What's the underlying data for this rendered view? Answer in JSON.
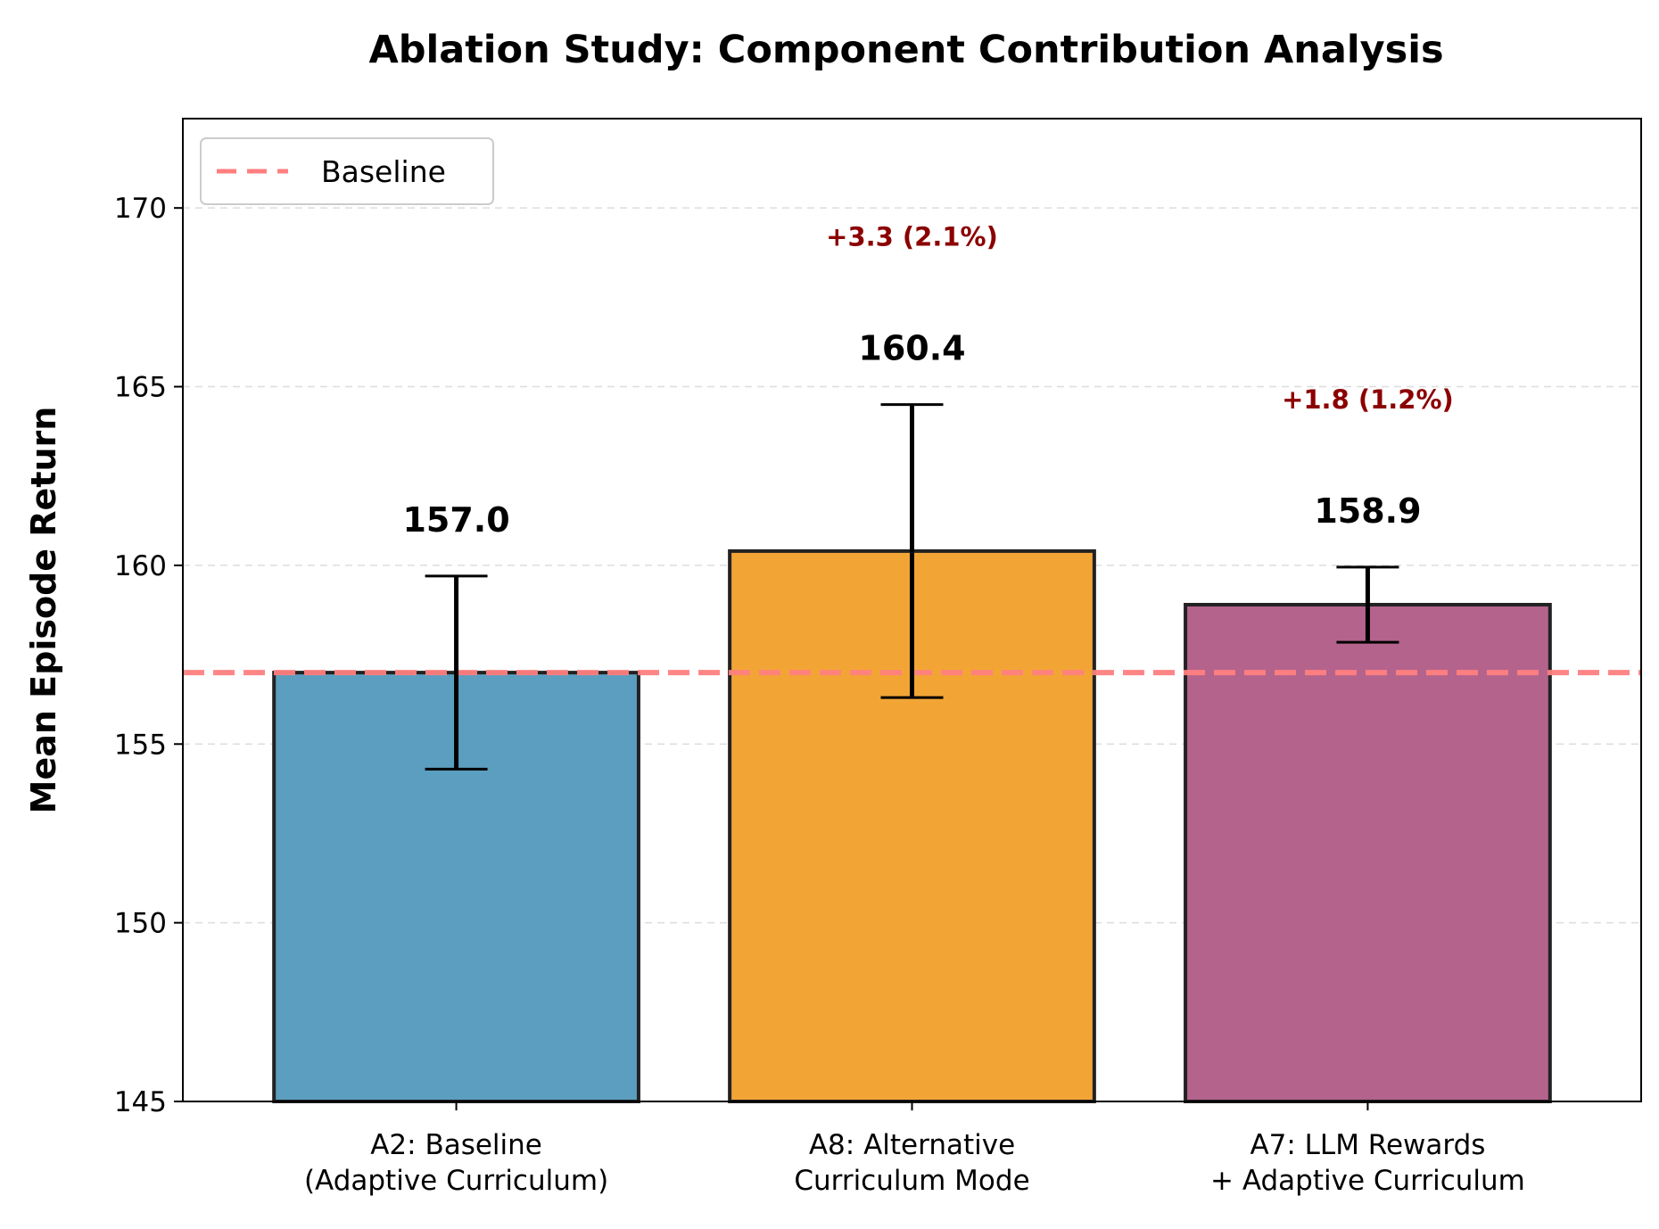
{
  "chart_data": {
    "type": "bar",
    "title": "Ablation Study: Component Contribution Analysis",
    "xlabel": "",
    "ylabel": "Mean Episode Return",
    "ylim": [
      145,
      172.5
    ],
    "yticks": [
      145,
      150,
      155,
      160,
      165,
      170
    ],
    "grid": "horizontal dashed",
    "categories": [
      [
        "A2: Baseline",
        "(Adaptive Curriculum)"
      ],
      [
        "A8: Alternative",
        "Curriculum Mode"
      ],
      [
        "A7: LLM Rewards",
        "+ Adaptive Curriculum"
      ]
    ],
    "values": [
      157.0,
      160.4,
      158.9
    ],
    "value_labels": [
      "157.0",
      "160.4",
      "158.9"
    ],
    "errors": [
      2.7,
      4.1,
      1.05
    ],
    "bar_colors": [
      "#5b9ebf",
      "#f2a535",
      "#b4638c"
    ],
    "improvement_labels": [
      "",
      "+3.3 (2.1%)",
      "+1.8 (1.2%)"
    ],
    "improvement_color": "#8b0000",
    "baseline": {
      "value": 157.0,
      "label": "Baseline",
      "color": "#ff7f7f"
    },
    "legend_position": "upper left"
  }
}
